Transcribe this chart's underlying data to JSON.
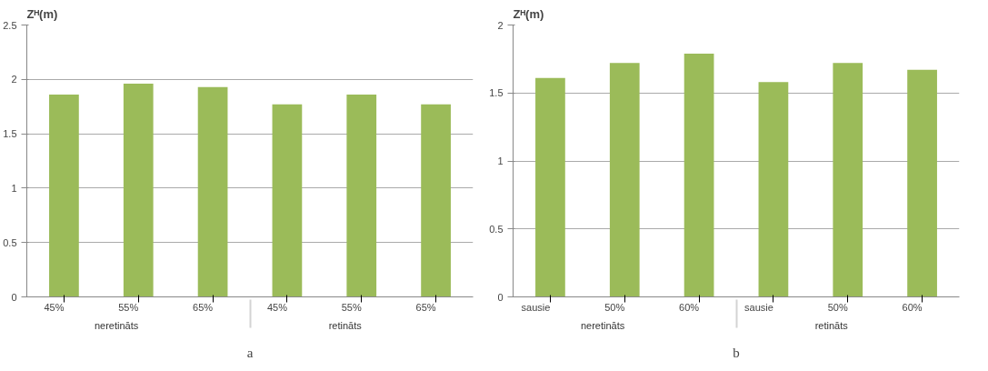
{
  "chart_data": [
    {
      "type": "bar",
      "ylabel": "Zᴴ(m)",
      "subtitle": "a",
      "categories": [
        "45%",
        "55%",
        "65%",
        "45%",
        "55%",
        "65%"
      ],
      "annotations": [
        "neretināts",
        "retināts"
      ],
      "values": [
        1.86,
        1.96,
        1.93,
        1.77,
        1.86,
        1.77
      ],
      "color": "#9bbb59",
      "ylim": [
        0,
        2.5
      ],
      "yticks": [
        0,
        0.5,
        1,
        1.5,
        2,
        2.5
      ],
      "grid": "y"
    },
    {
      "type": "bar",
      "ylabel": "Zᴴ(m)",
      "subtitle": "b",
      "categories": [
        "sausie",
        "50%",
        "60%",
        "sausie",
        "50%",
        "60%"
      ],
      "annotations": [
        "neretināts",
        "retināts"
      ],
      "values": [
        1.61,
        1.72,
        1.79,
        1.58,
        1.72,
        1.67
      ],
      "color": "#9bbb59",
      "ylim": [
        0,
        2
      ],
      "yticks": [
        0,
        0.5,
        1,
        1.5,
        2
      ],
      "grid": "y"
    }
  ]
}
